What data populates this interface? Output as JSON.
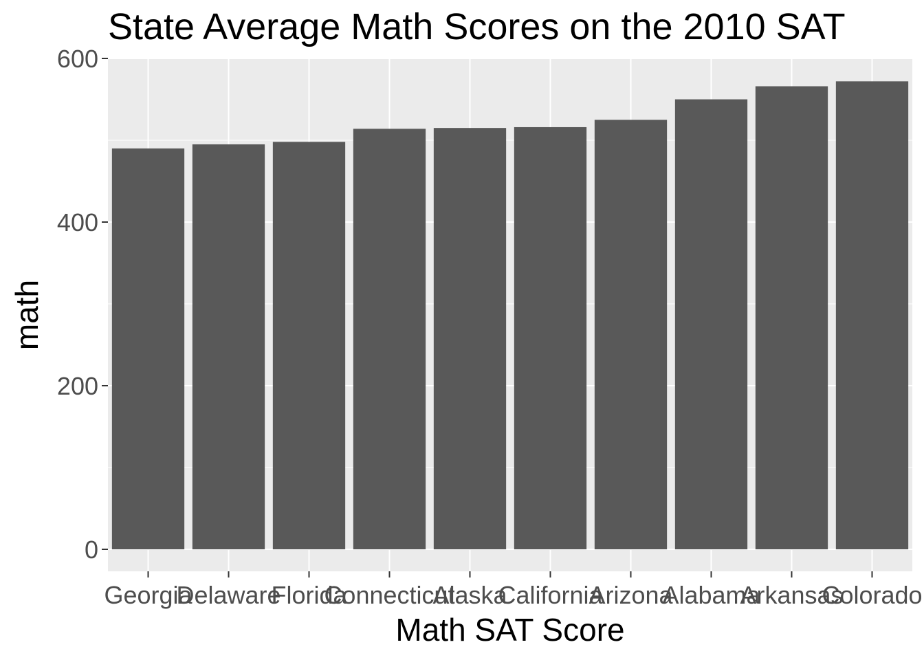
{
  "chart_data": {
    "type": "bar",
    "title": "State Average Math Scores on the 2010 SAT",
    "xlabel": "Math SAT Score",
    "ylabel": "math",
    "categories": [
      "Georgia",
      "Delaware",
      "Florida",
      "Connecticut",
      "Alaska",
      "California",
      "Arizona",
      "Alabama",
      "Arkansas",
      "Colorado"
    ],
    "values": [
      490,
      495,
      498,
      514,
      515,
      516,
      525,
      550,
      566,
      572
    ],
    "ylim": [
      0,
      600
    ],
    "y_ticks": [
      0,
      200,
      400,
      600
    ],
    "grid": true,
    "panel_color": "#ebebeb",
    "bar_color": "#595959",
    "grid_color": "#ffffff"
  }
}
